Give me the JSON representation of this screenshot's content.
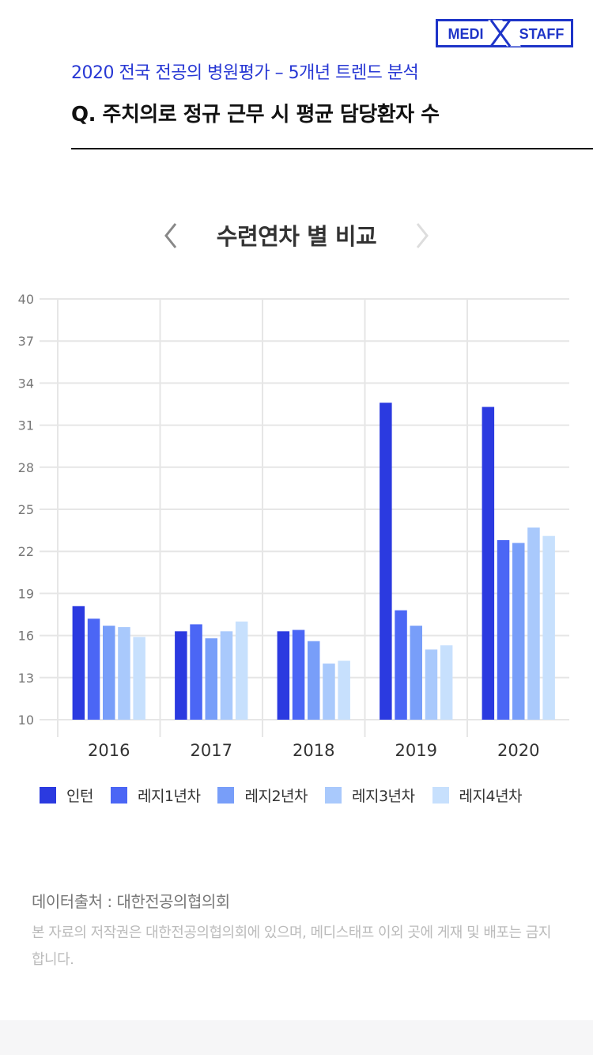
{
  "logo": {
    "left_text": "MEDI",
    "right_text": "STAFF",
    "color": "#1e34c8"
  },
  "header": {
    "subtitle": "2020 전국 전공의 병원평가 – 5개년 트렌드 분석",
    "question": "Q. 주치의로 정규 근무 시 평균 담당환자 수"
  },
  "navigation": {
    "prev_icon": "chevron-left-icon",
    "next_icon": "chevron-right-icon"
  },
  "chart_data": {
    "type": "bar",
    "title": "수련연차 별 비교",
    "categories": [
      "2016",
      "2017",
      "2018",
      "2019",
      "2020"
    ],
    "ylim": [
      10,
      40
    ],
    "yticks": [
      10,
      13,
      16,
      19,
      22,
      25,
      28,
      31,
      34,
      37,
      40
    ],
    "grid": true,
    "legend_position": "bottom",
    "series": [
      {
        "name": "인턴",
        "color": "#2b3ae0",
        "values": [
          18.1,
          16.3,
          16.3,
          32.6,
          32.3
        ]
      },
      {
        "name": "레지1년차",
        "color": "#4b66f5",
        "values": [
          17.2,
          16.8,
          16.4,
          17.8,
          22.8
        ]
      },
      {
        "name": "레지2년차",
        "color": "#789ef9",
        "values": [
          16.7,
          15.8,
          15.6,
          16.7,
          22.6
        ]
      },
      {
        "name": "레지3년차",
        "color": "#a9c9fc",
        "values": [
          16.6,
          16.3,
          14.0,
          15.0,
          23.7
        ]
      },
      {
        "name": "레지4년차",
        "color": "#c7e0fd",
        "values": [
          15.9,
          17.0,
          14.2,
          15.3,
          23.1
        ]
      }
    ]
  },
  "footer": {
    "source": "데이터출처 : 대한전공의협의회",
    "copyright": "본 자료의 저작권은 대한전공의협의회에 있으며, 메디스태프 이외 곳에 게재 및 배포는 금지합니다."
  }
}
